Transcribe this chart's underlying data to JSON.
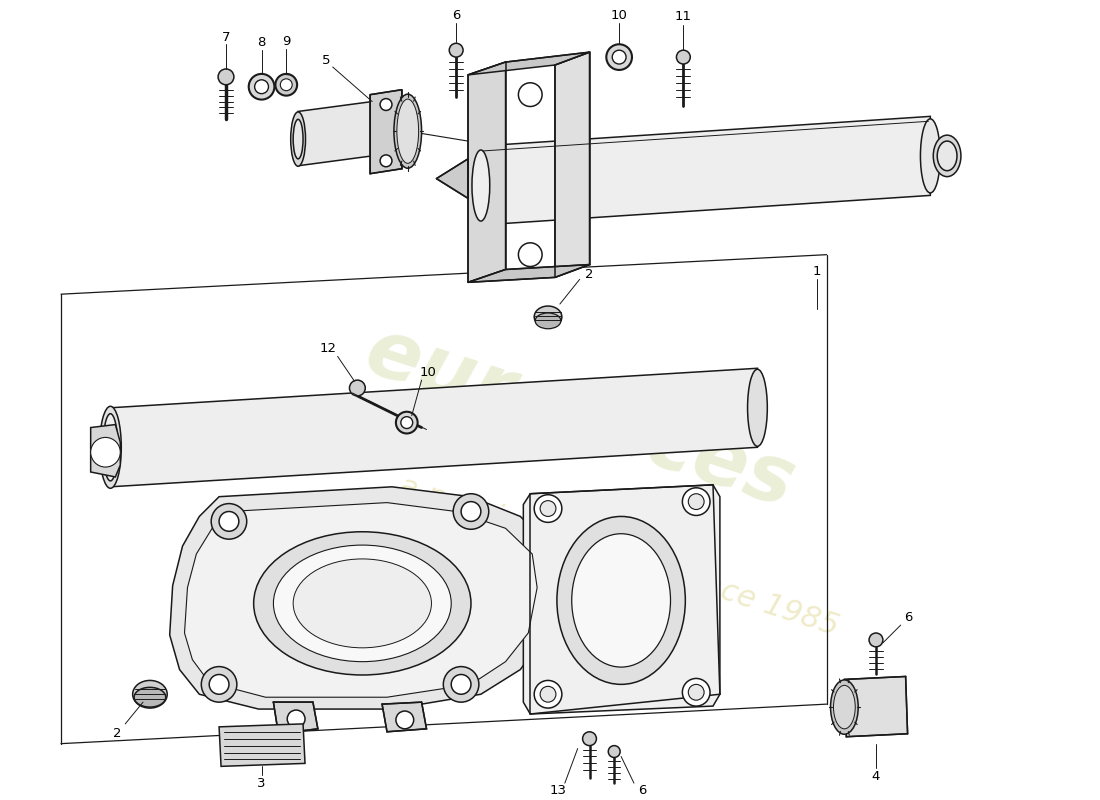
{
  "background_color": "#ffffff",
  "line_color": "#1a1a1a",
  "watermark_color_1": "#b8c870",
  "watermark_color_2": "#c8b840",
  "watermark_alpha": 0.28,
  "fig_width": 11.0,
  "fig_height": 8.0,
  "lw": 1.1
}
